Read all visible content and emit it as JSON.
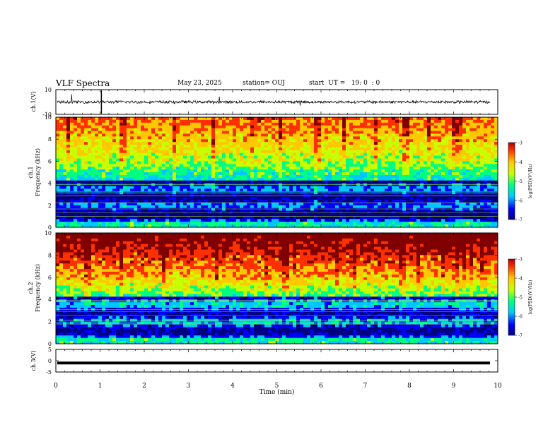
{
  "header": {
    "title": "VLF Spectra",
    "date": "May 23, 2025",
    "station": "station= OUJ",
    "start": "start  UT =   19: 0  : 0"
  },
  "colors": {
    "colormap": [
      "#000080",
      "#0000ff",
      "#00c8ff",
      "#00ff80",
      "#c8ff00",
      "#ffc800",
      "#ff3000",
      "#800000"
    ]
  },
  "chart_data": [
    {
      "type": "line",
      "panel": "ch1-waveform",
      "ylabel": "ch.1(V)",
      "ylim": [
        -10,
        10
      ],
      "yticks": [
        "10",
        "-10"
      ],
      "description_level": 0
    },
    {
      "type": "heatmap",
      "panel": "ch1-spectrogram",
      "ylabel": "ch.1\nFrequency (kHz)",
      "ylabel_line1": "ch.1",
      "ylabel_line2": "Frequency (kHz)",
      "ylim": [
        0,
        10
      ],
      "yticks": [
        "0",
        "2",
        "4",
        "6",
        "8",
        "10"
      ],
      "colorbar": {
        "label": "log(PSD)(V²/Hz)",
        "range": [
          -7,
          -3
        ],
        "ticks": [
          "-3",
          "-4",
          "-5",
          "-6",
          "-7"
        ]
      }
    },
    {
      "type": "heatmap",
      "panel": "ch2-spectrogram",
      "ylabel_line1": "ch.2",
      "ylabel_line2": "Frequency (kHz)",
      "ylim": [
        0,
        10
      ],
      "yticks": [
        "0",
        "2",
        "4",
        "6",
        "8",
        "10"
      ],
      "colorbar": {
        "label": "log(PSD)(V²/Hz)",
        "range": [
          -7,
          -3
        ],
        "ticks": [
          "-3",
          "-4",
          "-5",
          "-6",
          "-7"
        ]
      }
    },
    {
      "type": "line",
      "panel": "ch3-waveform",
      "ylabel": "ch.3(V)",
      "ylim": [
        -5,
        5
      ],
      "yticks": [
        "5",
        "0",
        "-5"
      ],
      "level": -1
    }
  ],
  "xaxis": {
    "label": "Time  (min)",
    "range": [
      0,
      10
    ],
    "ticks": [
      "0",
      "1",
      "2",
      "3",
      "4",
      "5",
      "6",
      "7",
      "8",
      "9",
      "10"
    ]
  }
}
